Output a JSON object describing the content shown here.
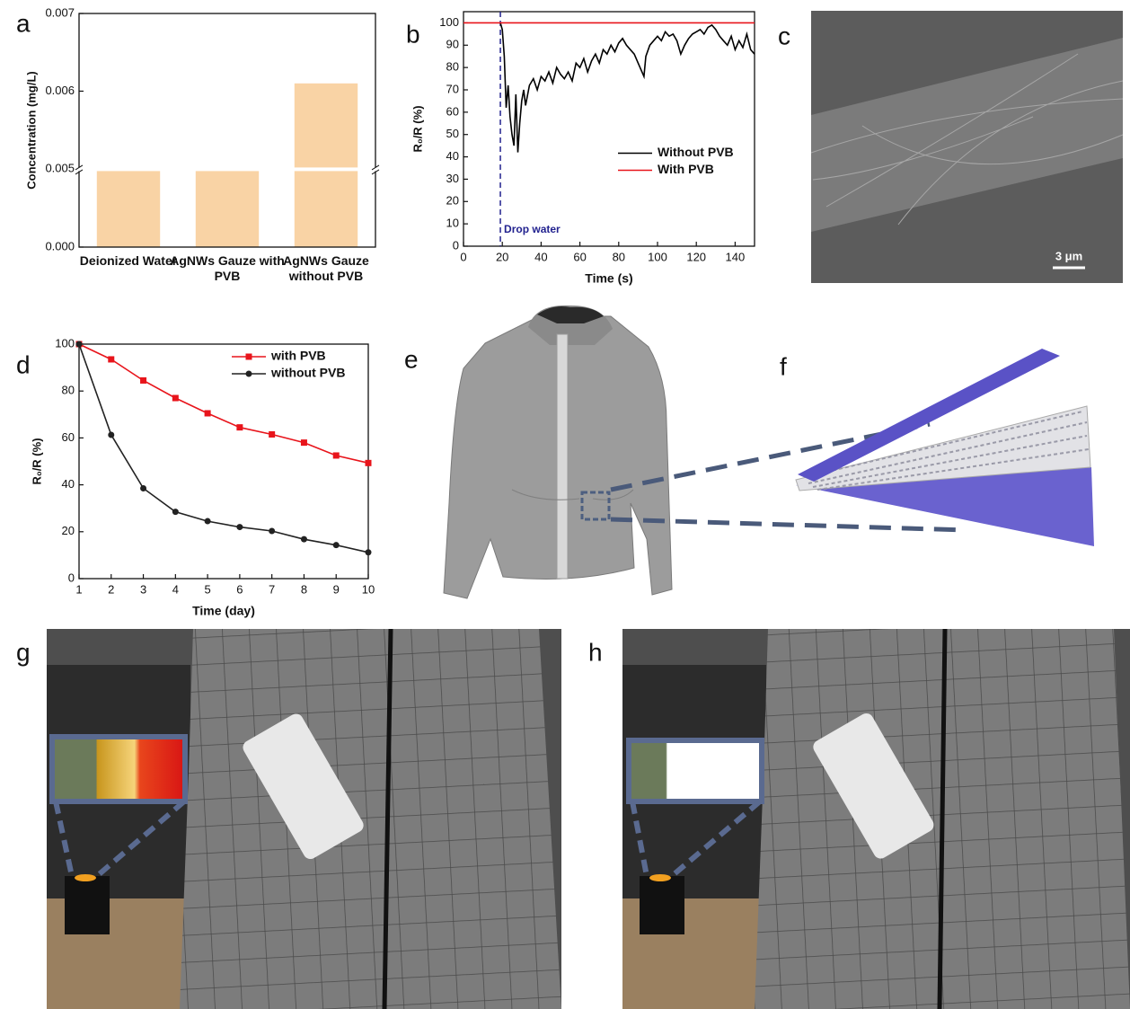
{
  "panel_labels": [
    "a",
    "b",
    "c",
    "d",
    "e",
    "f",
    "g",
    "h"
  ],
  "scale_bar": "3 μm",
  "chart_data": [
    {
      "type": "bar",
      "categories": [
        "Deionized Water",
        "AgNWs Gauze with PVB",
        "AgNWs Gauze without PVB"
      ],
      "values": [
        0.0049,
        0.0049,
        0.0061
      ],
      "color": "#f9d3a5",
      "ylabel": "Concentration (mg/L)",
      "ylim": [
        0,
        0.007
      ],
      "yticks": [
        {
          "value": 0,
          "label": "0.000"
        },
        {
          "value": 0.005,
          "label": "0.005"
        },
        {
          "value": 0.006,
          "label": "0.006"
        },
        {
          "value": 0.007,
          "label": "0.007"
        }
      ],
      "y_break": 0.005
    },
    {
      "type": "line",
      "xlabel": "Time (s)",
      "ylabel": "R₀/R (%)",
      "xlim": [
        0,
        150
      ],
      "ylim": [
        0,
        105
      ],
      "xticks": [
        0,
        20,
        40,
        60,
        80,
        100,
        120,
        140
      ],
      "yticks": [
        0,
        10,
        20,
        30,
        40,
        50,
        60,
        70,
        80,
        90,
        100
      ],
      "legend": "center right",
      "annotations": [
        {
          "text": "Drop water",
          "x": 19,
          "color": "#22228f"
        }
      ],
      "series": [
        {
          "name": "Without PVB",
          "color": "#000000",
          "x": [
            19,
            20,
            21,
            22,
            23,
            24,
            25,
            26,
            27,
            28,
            29,
            30,
            31,
            32,
            34,
            36,
            38,
            40,
            42,
            44,
            46,
            48,
            50,
            52,
            54,
            56,
            58,
            60,
            62,
            64,
            66,
            68,
            70,
            72,
            74,
            76,
            78,
            80,
            82,
            84,
            86,
            88,
            90,
            92,
            93,
            94,
            96,
            98,
            100,
            102,
            104,
            106,
            108,
            110,
            112,
            114,
            116,
            118,
            120,
            122,
            124,
            126,
            128,
            130,
            132,
            134,
            136,
            138,
            140,
            142,
            144,
            146,
            148,
            150
          ],
          "values": [
            100,
            97,
            85,
            62,
            72,
            58,
            50,
            45,
            68,
            42,
            55,
            65,
            70,
            63,
            72,
            75,
            70,
            76,
            74,
            78,
            73,
            80,
            77,
            75,
            78,
            74,
            82,
            80,
            84,
            78,
            83,
            86,
            82,
            88,
            86,
            90,
            87,
            91,
            93,
            90,
            88,
            86,
            82,
            78,
            76,
            85,
            90,
            92,
            94,
            92,
            96,
            94,
            95,
            92,
            86,
            90,
            93,
            95,
            96,
            97,
            95,
            98,
            99,
            97,
            94,
            92,
            90,
            94,
            88,
            92,
            89,
            95,
            88,
            86
          ]
        },
        {
          "name": "With PVB",
          "color": "#e8141b",
          "x": [
            0,
            150
          ],
          "values": [
            100,
            100
          ]
        }
      ]
    },
    {
      "type": "line",
      "xlabel": "Time (day)",
      "ylabel": "R₀/R (%)",
      "x": [
        1,
        2,
        3,
        4,
        5,
        6,
        7,
        8,
        9,
        10
      ],
      "xlim": [
        1,
        10
      ],
      "ylim": [
        0,
        100
      ],
      "xticks": [
        1,
        2,
        3,
        4,
        5,
        6,
        7,
        8,
        9,
        10
      ],
      "yticks": [
        0,
        20,
        40,
        60,
        80,
        100
      ],
      "legend": "upper right",
      "series": [
        {
          "name": "with PVB",
          "color": "#e8141b",
          "marker": "square",
          "values": [
            100,
            93.5,
            84.5,
            77,
            70.5,
            64.5,
            61.5,
            58,
            52.5,
            49.3
          ]
        },
        {
          "name": "without PVB",
          "color": "#222222",
          "marker": "circle",
          "values": [
            100,
            61.3,
            38.5,
            28.5,
            24.5,
            22,
            20.3,
            16.8,
            14.3,
            11.2
          ]
        }
      ]
    }
  ]
}
